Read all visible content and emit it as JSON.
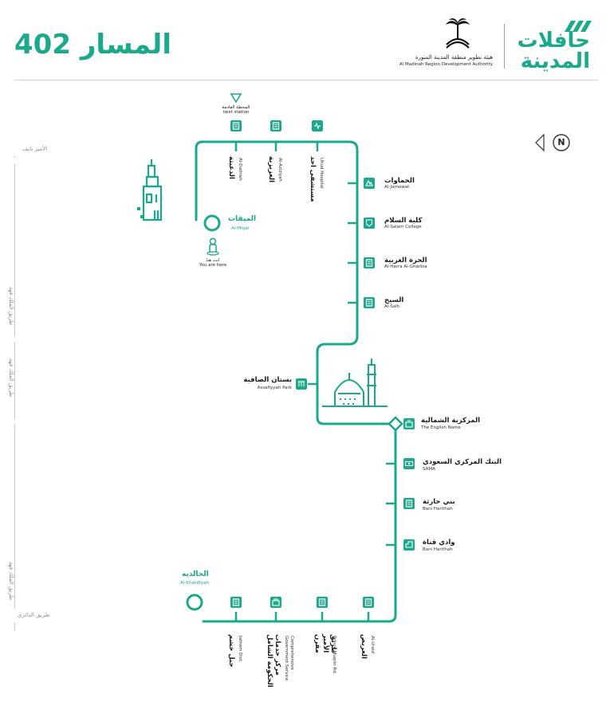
{
  "header": {
    "route_title": "المسار 402",
    "brand_line1": "حافلات",
    "brand_line2": "المدينة",
    "authority_ar": "هيئة تطوير منطقة المدينة المنورة",
    "authority_en": "Al Madinah Region Development Authority"
  },
  "compass": {
    "label": "N"
  },
  "markers": {
    "next_station_ar": "المحطة القادمة",
    "next_station_en": "next station",
    "you_are_here_ar": "انت هنا",
    "you_are_here_en": "You are here"
  },
  "stations_top": [
    {
      "ar": "الدعيثة",
      "en": "Al-Dathiah"
    },
    {
      "ar": "العزيزية",
      "en": "Al-Aziziyah"
    },
    {
      "ar": "مستشفى احد",
      "en": "Uhud Hospital"
    }
  ],
  "station_current": {
    "ar": "الميقات",
    "en": "Al-Miqat"
  },
  "stations_right_upper": [
    {
      "ar": "الحماوات",
      "en": "Al-Jamawat"
    },
    {
      "ar": "كلية السلام",
      "en": "Al-Salam College"
    },
    {
      "ar": "الحرة الغربية",
      "en": "Al-Harra Al-Gharbia"
    },
    {
      "ar": "السيح",
      "en": "Al-Saih"
    }
  ],
  "station_park": {
    "ar": "بستان الصافية",
    "en": "Assafiyyah Park"
  },
  "station_hub": {
    "ar": "المركزية الشمالية",
    "en": "The English Name"
  },
  "stations_right_lower": [
    {
      "ar": "البنك المركزي السعودي",
      "en": "SAMA"
    },
    {
      "ar": "بني حارثة",
      "en": "Bani Harithah"
    },
    {
      "ar": "وادي قناة",
      "en": "Bani Harithah"
    }
  ],
  "station_terminal": {
    "ar": "الخالدية",
    "en": "Al-Khalidiyah"
  },
  "stations_bottom": [
    {
      "ar": "جبل خشم",
      "en": "Jathem Dist."
    },
    {
      "ar": "مركز خدمات الحكومة الشامل",
      "en": "Comprehensive Government Service"
    },
    {
      "ar": "طريق الأمير مقرن",
      "en": "Prince Muqrin Rd."
    },
    {
      "ar": "العريض",
      "en": "Al-Uraid"
    }
  ],
  "side_labels": [
    "الأمير نايف",
    "طريق الملك فهد",
    "طريق الملك فهد",
    "طريق الملك فهد",
    "طريق الدائري"
  ],
  "colors": {
    "route": "#1aa98a",
    "title": "#1aa98a",
    "text": "#1a1a1a",
    "muted": "#8c8c8c"
  },
  "icons": [
    "bus-stop-icon",
    "hospital-icon",
    "mountain-icon",
    "shield-icon",
    "bag-icon",
    "bank-icon",
    "park-icon",
    "person-pin-icon",
    "compass-icon",
    "mosque-icon",
    "minaret-icon"
  ]
}
